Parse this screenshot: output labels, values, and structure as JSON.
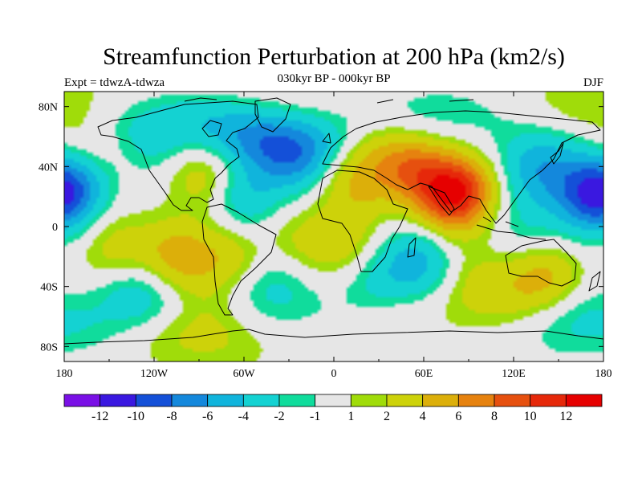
{
  "chart_data": {
    "type": "heatmap",
    "title": "Streamfunction Perturbation at 200 hPa (km2/s)",
    "left_label": "Expt = tdwzA-tdwza",
    "center_label": "030kyr BP - 000kyr BP",
    "right_label": "DJF",
    "x_ticks": [
      "180",
      "120W",
      "60W",
      "0",
      "60E",
      "120E",
      "180"
    ],
    "y_ticks": [
      "80N",
      "40N",
      "0",
      "40S",
      "80S"
    ],
    "xlim": [
      -180,
      180
    ],
    "ylim": [
      -90,
      90
    ],
    "colorbar": {
      "labels": [
        "-12",
        "-10",
        "-8",
        "-6",
        "-4",
        "-2",
        "-1",
        "1",
        "2",
        "4",
        "6",
        "8",
        "10",
        "12"
      ],
      "colors": [
        "#7a10e6",
        "#3a18e0",
        "#1450d8",
        "#1488dc",
        "#10b4dc",
        "#14d2d2",
        "#10dc9c",
        "#e6e6e6",
        "#a0dc0a",
        "#cdd20a",
        "#dcaf0a",
        "#e6820f",
        "#e6500f",
        "#e6280a",
        "#e60000"
      ]
    },
    "field_centers": [
      {
        "lon": 80,
        "lat": 22,
        "value": 13
      },
      {
        "lon": 50,
        "lat": 40,
        "value": 6
      },
      {
        "lon": 15,
        "lat": 30,
        "value": 4
      },
      {
        "lon": -105,
        "lat": -20,
        "value": 5
      },
      {
        "lon": -70,
        "lat": -20,
        "value": 3
      },
      {
        "lon": -145,
        "lat": -15,
        "value": 3
      },
      {
        "lon": -85,
        "lat": 35,
        "value": 4
      },
      {
        "lon": -155,
        "lat": 50,
        "value": 2
      },
      {
        "lon": -25,
        "lat": -10,
        "value": 2
      },
      {
        "lon": 5,
        "lat": -10,
        "value": 3
      },
      {
        "lon": 140,
        "lat": -35,
        "value": 5
      },
      {
        "lon": 95,
        "lat": -40,
        "value": 3
      },
      {
        "lon": 40,
        "lat": -50,
        "value": 2
      },
      {
        "lon": -90,
        "lat": -70,
        "value": 3
      },
      {
        "lon": -30,
        "lat": 80,
        "value": 2
      },
      {
        "lon": 175,
        "lat": 82,
        "value": 2
      },
      {
        "lon": -25,
        "lat": 50,
        "value": -8
      },
      {
        "lon": -60,
        "lat": 60,
        "value": -5
      },
      {
        "lon": -120,
        "lat": 60,
        "value": -4
      },
      {
        "lon": -175,
        "lat": 25,
        "value": -6
      },
      {
        "lon": 170,
        "lat": 20,
        "value": -7
      },
      {
        "lon": 135,
        "lat": 40,
        "value": -5
      },
      {
        "lon": 55,
        "lat": -25,
        "value": -5
      },
      {
        "lon": 30,
        "lat": -40,
        "value": -3
      },
      {
        "lon": -130,
        "lat": -45,
        "value": -4
      },
      {
        "lon": -40,
        "lat": -40,
        "value": -3
      },
      {
        "lon": -60,
        "lat": 20,
        "value": -4
      },
      {
        "lon": 165,
        "lat": -60,
        "value": -3
      },
      {
        "lon": 130,
        "lat": 0,
        "value": -2
      },
      {
        "lon": 70,
        "lat": 70,
        "value": -2
      }
    ]
  }
}
